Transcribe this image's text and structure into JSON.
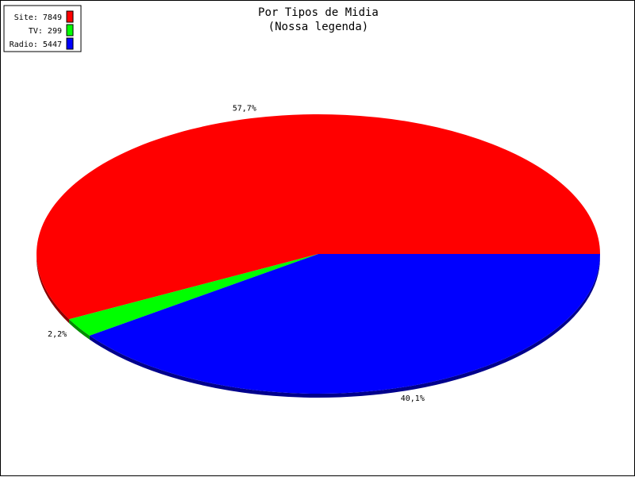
{
  "chart_data": {
    "type": "pie",
    "title": "Por Tipos de Midia",
    "subtitle": "(Nossa legenda)",
    "legend_position": "top-left",
    "slices": [
      {
        "label": "Site",
        "value": 7849,
        "percent_label": "57,7%",
        "color": "#ff0000",
        "legend_label": "Site: 7849"
      },
      {
        "label": "TV",
        "value": 299,
        "percent_label": "2,2%",
        "color": "#00ff00",
        "legend_label": "TV: 299"
      },
      {
        "label": "Radio",
        "value": 5447,
        "percent_label": "40,1%",
        "color": "#0000ff",
        "legend_label": "Radio: 5447"
      }
    ]
  }
}
